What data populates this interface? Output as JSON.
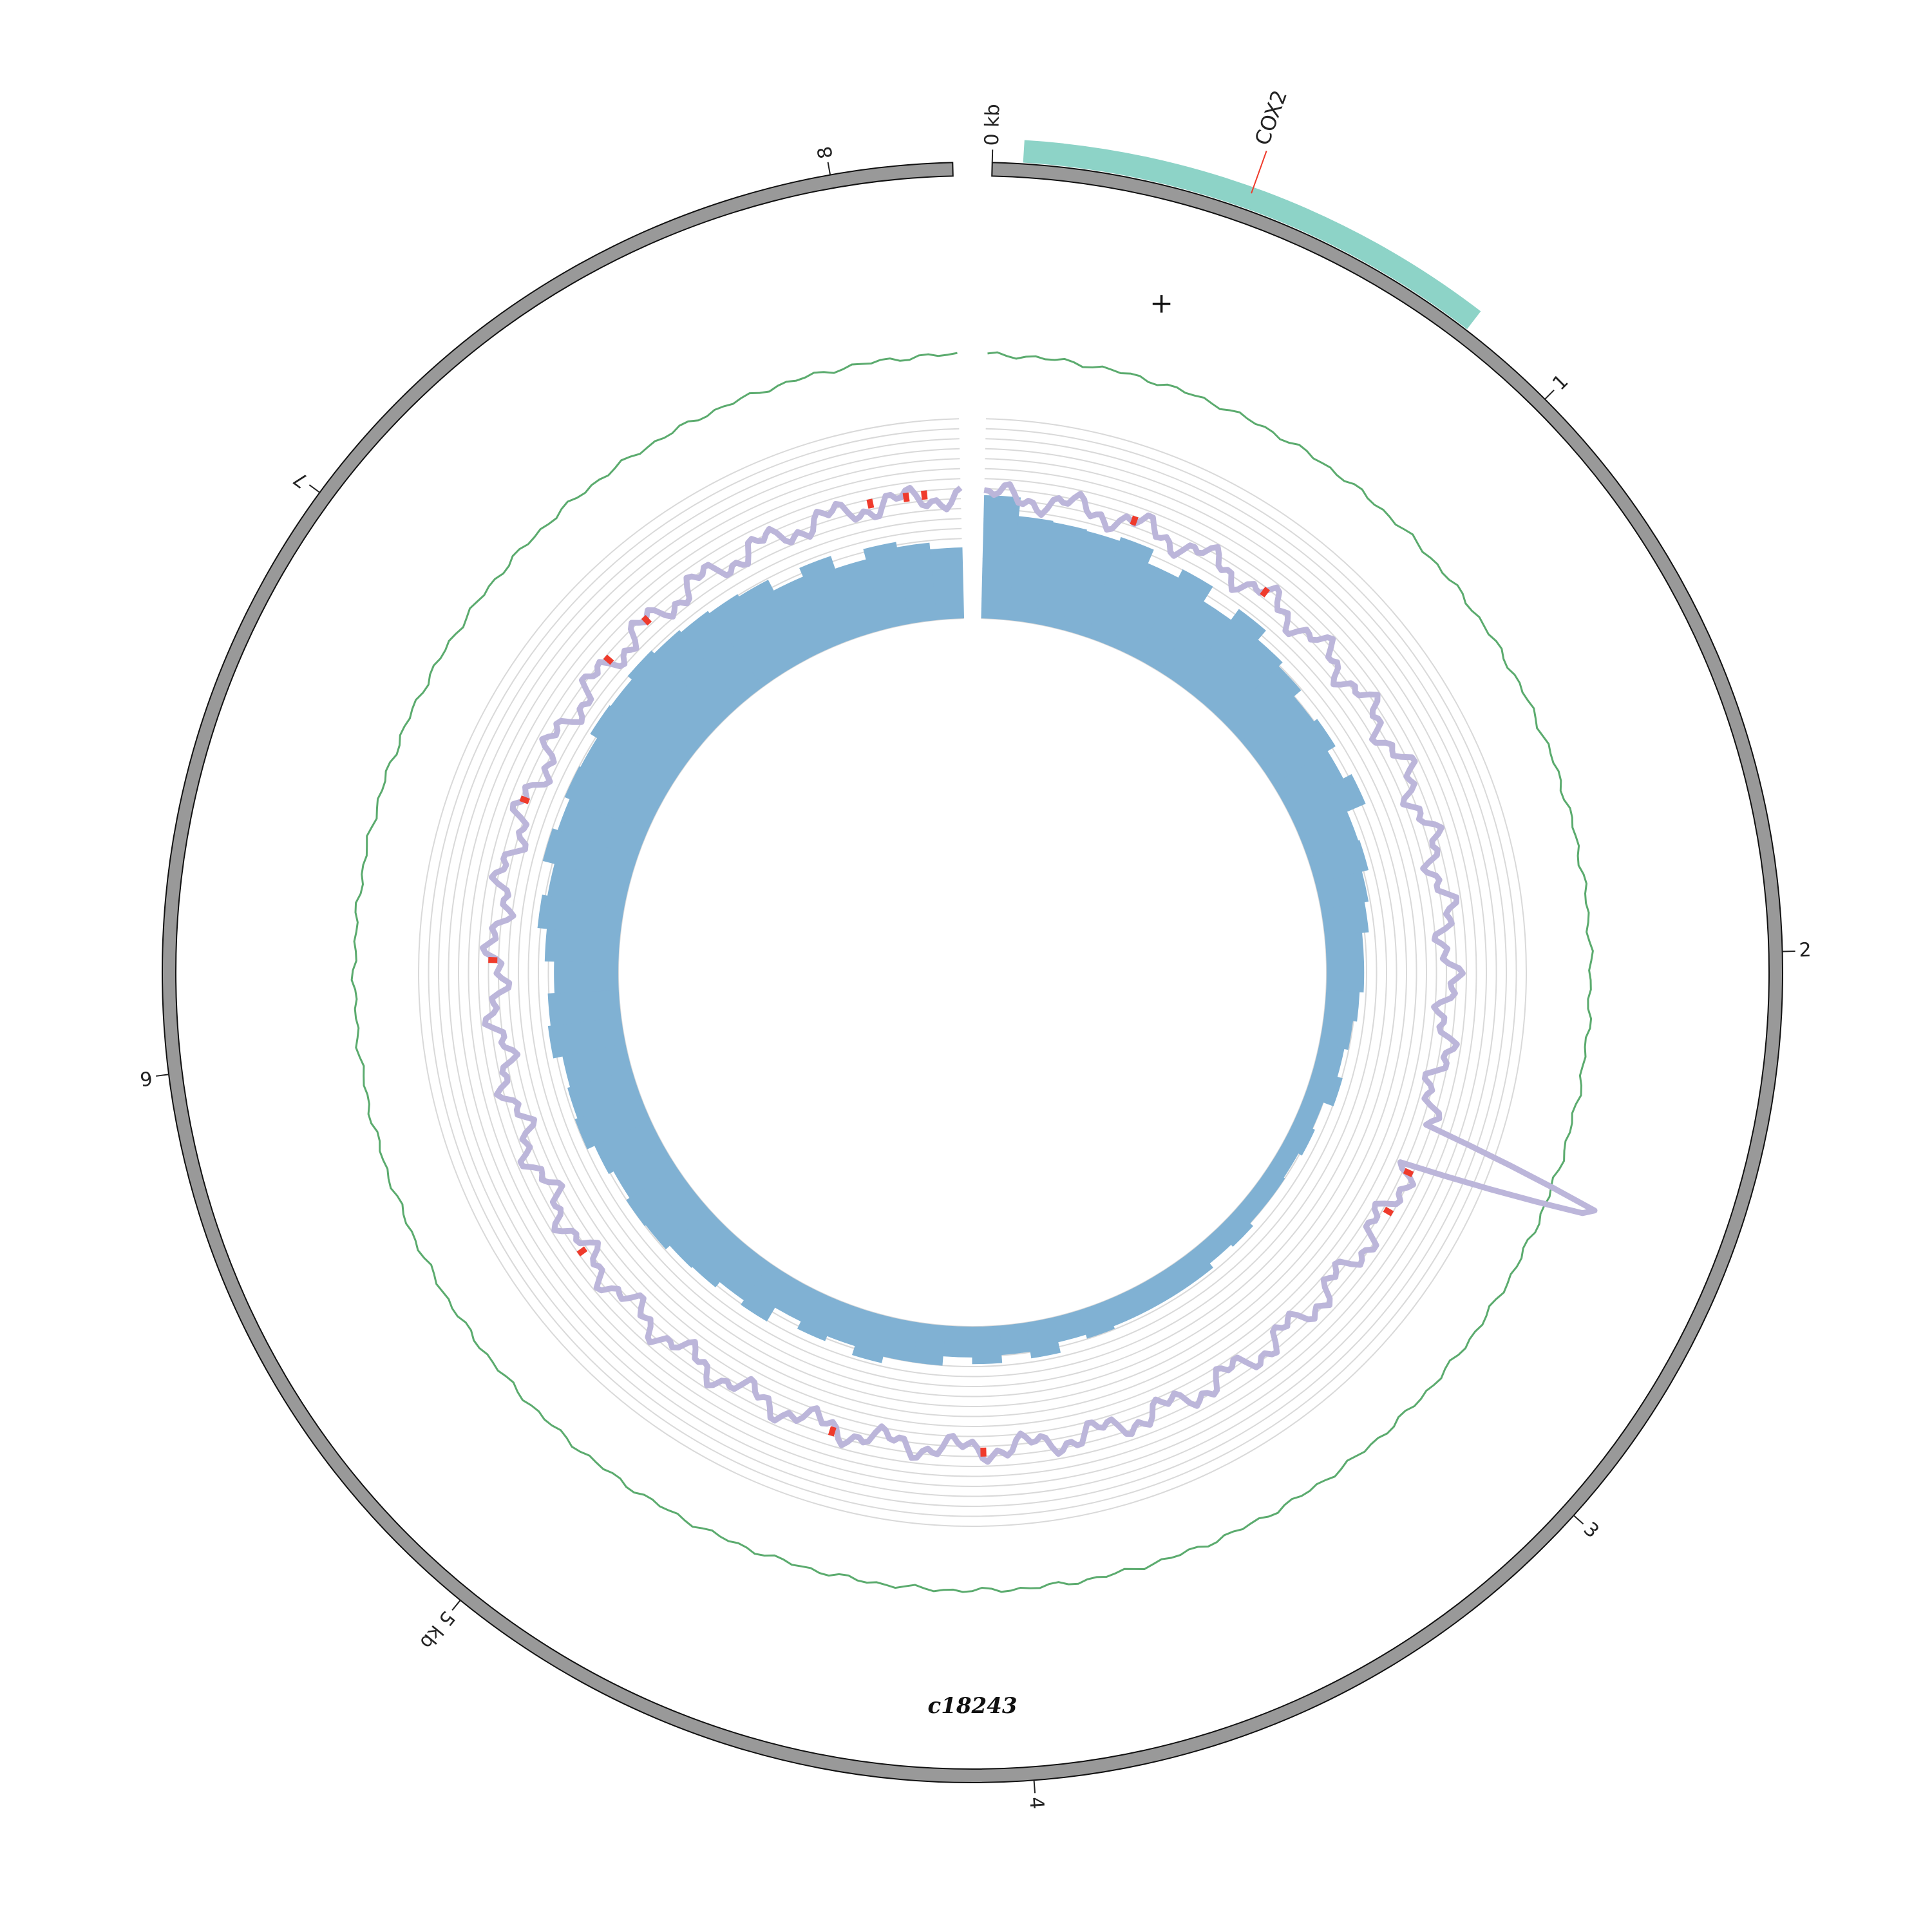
{
  "chart_data": {
    "type": "circular-genome",
    "contig": "c18243",
    "strand_symbol": "+",
    "genome_length_kb": 8.2,
    "ticks": [
      {
        "pos_kb": 0,
        "label": "0 kb"
      },
      {
        "pos_kb": 1,
        "label": "1"
      },
      {
        "pos_kb": 2,
        "label": "2"
      },
      {
        "pos_kb": 3,
        "label": "3"
      },
      {
        "pos_kb": 4,
        "label": "4"
      },
      {
        "pos_kb": 5,
        "label": "5 kb"
      },
      {
        "pos_kb": 6,
        "label": "6"
      },
      {
        "pos_kb": 7,
        "label": "7"
      },
      {
        "pos_kb": 8,
        "label": "8"
      }
    ],
    "genes": [
      {
        "name": "COX2",
        "start_kb": 0.05,
        "end_kb": 0.83,
        "label_at_kb": 0.42
      }
    ],
    "coverage": {
      "bin_kb": 0.1,
      "ylim": [
        0,
        100
      ],
      "values": [
        92,
        78,
        77,
        76,
        79,
        68,
        75,
        62,
        72,
        63,
        59,
        52,
        55,
        48,
        55,
        40,
        41,
        36,
        33,
        28,
        28,
        25,
        22,
        19,
        23,
        15,
        17,
        14,
        15,
        15,
        18,
        16,
        20,
        20,
        20,
        20,
        22,
        19,
        27,
        22,
        28,
        23,
        30,
        30,
        35,
        28,
        32,
        26,
        38,
        34,
        39,
        40,
        44,
        45,
        42,
        46,
        52,
        50,
        48,
        55,
        53,
        48,
        55,
        62,
        58,
        67,
        63,
        67,
        66,
        72,
        71,
        75,
        72,
        70,
        68,
        66,
        57,
        64,
        54,
        62,
        58,
        53,
        48,
        40,
        45,
        34,
        41,
        30,
        36,
        30,
        24,
        28,
        26,
        21,
        24,
        20,
        25,
        19,
        24,
        18,
        26,
        18,
        22,
        16,
        23,
        21,
        29,
        26,
        33,
        28,
        36,
        29,
        39,
        37,
        38,
        45,
        50,
        42,
        55,
        46,
        57,
        58,
        56,
        61,
        62,
        58,
        64,
        58,
        60,
        68,
        64,
        67,
        71,
        69,
        72,
        75,
        74,
        70,
        72,
        75,
        72,
        80,
        78,
        77,
        85,
        86,
        82,
        88,
        94,
        90
      ]
    },
    "gc_content": {
      "baseline": 47,
      "range": [
        42,
        52
      ],
      "color": "#5bab6e"
    },
    "coverage_line": {
      "baseline": 48,
      "spike_at_kb": 2.52,
      "spike_value": 86,
      "color": "#bcb6da"
    },
    "variant_marks": [
      0.42,
      0.83,
      2.6,
      2.72,
      4.07,
      4.49,
      5.35,
      6.2,
      6.65,
      7.1,
      7.25,
      7.95,
      8.05,
      8.1
    ],
    "colors": {
      "backbone": "#999999",
      "gene": "#8dd3c7",
      "coverage_bar": "#80b1d3",
      "variant": "#ef3b2c",
      "grid": "#d9d9d9"
    }
  }
}
